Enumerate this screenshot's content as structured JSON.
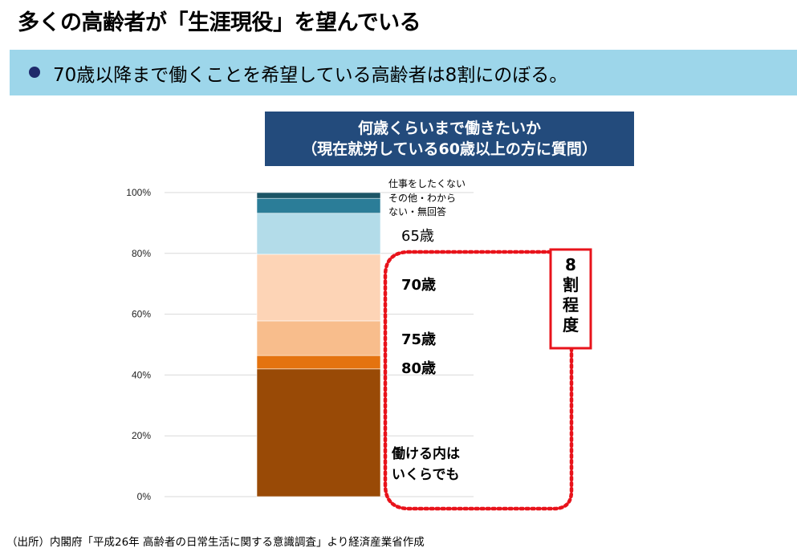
{
  "header": {
    "title": "多くの高齢者が「生涯現役」を望んでいる",
    "bullet": "70歳以降まで働くことを希望している高齢者は8割にのぼる。"
  },
  "chart_title": {
    "line1": "何歳くらいまで働きたいか",
    "line2": "（現在就労している60歳以上の方に質問）"
  },
  "chart_data": {
    "type": "bar",
    "stacked": true,
    "ylim": [
      0,
      100
    ],
    "y_ticks": [
      "0%",
      "20%",
      "40%",
      "60%",
      "80%",
      "100%"
    ],
    "grid": true,
    "series": [
      {
        "name": "働ける内はいくらでも",
        "value": 42.0,
        "color": "#994a06"
      },
      {
        "name": "80歳",
        "value": 4.4,
        "color": "#e4730f"
      },
      {
        "name": "75歳",
        "value": 11.4,
        "color": "#f8bd8c"
      },
      {
        "name": "70歳",
        "value": 21.9,
        "color": "#fdd4b6"
      },
      {
        "name": "65歳",
        "value": 13.5,
        "color": "#b3dce9"
      },
      {
        "name": "その他・わからない・無回答",
        "value": 4.9,
        "color": "#2b7d98"
      },
      {
        "name": "仕事をしたくない",
        "value": 1.9,
        "color": "#1c5566"
      }
    ]
  },
  "annotation": {
    "label": "8割程度"
  },
  "footer": {
    "source": "（出所）内閣府「平成26年 高齢者の日常生活に関する意識調査」より経済産業省作成"
  }
}
